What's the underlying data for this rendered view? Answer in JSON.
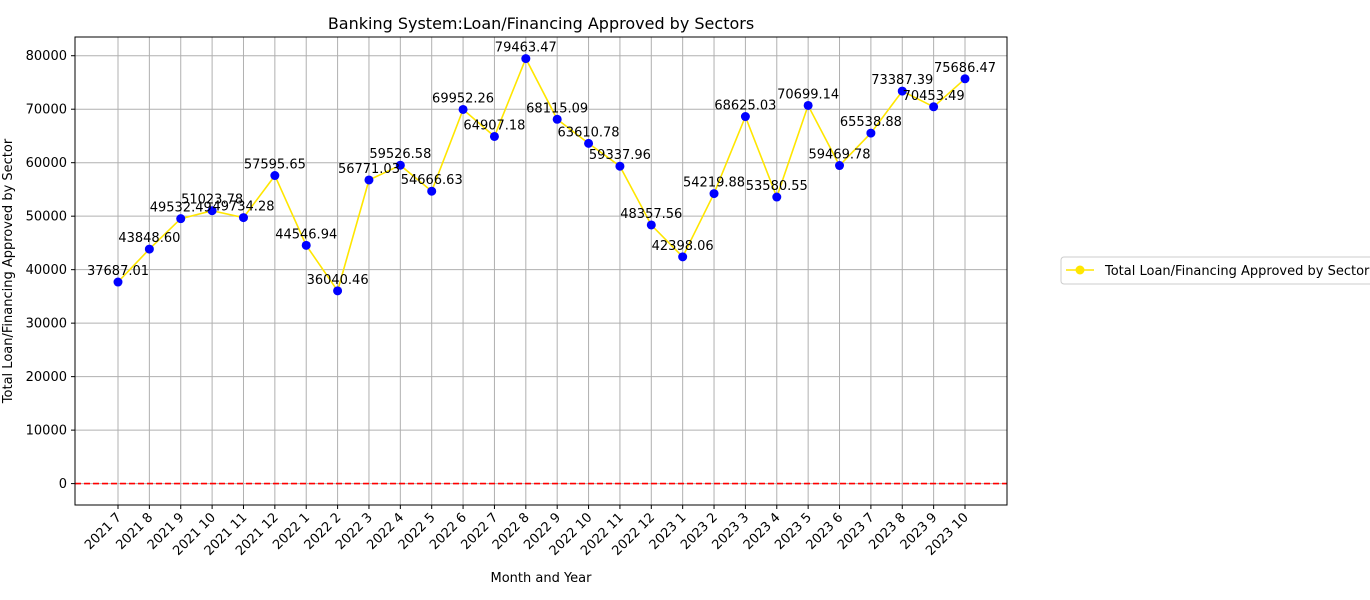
{
  "chart_data": {
    "type": "line",
    "title": "Banking System:Loan/Financing Approved by Sectors",
    "xlabel": "Month and Year",
    "ylabel": "Total Loan/Financing Approved by Sector",
    "categories": [
      "2021 7",
      "2021 8",
      "2021 9",
      "2021 10",
      "2021 11",
      "2021 12",
      "2022 1",
      "2022 2",
      "2022 3",
      "2022 4",
      "2022 5",
      "2022 6",
      "2022 7",
      "2022 8",
      "2022 9",
      "2022 10",
      "2022 11",
      "2022 12",
      "2023 1",
      "2023 2",
      "2023 3",
      "2023 4",
      "2023 5",
      "2023 6",
      "2023 7",
      "2023 8",
      "2023 9",
      "2023 10"
    ],
    "series": [
      {
        "name": "Total Loan/Financing Approved by Sector",
        "line_color": "#ffe600",
        "marker_color": "#0000ff",
        "values": [
          37687.01,
          43848.6,
          49532.49,
          51023.78,
          49734.28,
          57595.65,
          44546.94,
          36040.46,
          56771.03,
          59526.58,
          54666.63,
          69952.26,
          64907.18,
          79463.47,
          68115.09,
          63610.78,
          59337.96,
          48357.56,
          42398.06,
          54219.88,
          68625.03,
          53580.55,
          70699.14,
          59469.78,
          65538.88,
          73387.39,
          70453.49,
          75686.47
        ]
      }
    ],
    "data_labels": [
      "37687.01",
      "43848.60",
      "49532.49",
      "51023.78",
      "49734.28",
      "57595.65",
      "44546.94",
      "36040.46",
      "56771.03",
      "59526.58",
      "54666.63",
      "69952.26",
      "64907.18",
      "79463.47",
      "68115.09",
      "63610.78",
      "59337.96",
      "48357.56",
      "42398.06",
      "54219.88",
      "68625.03",
      "53580.55",
      "70699.14",
      "59469.78",
      "65538.88",
      "73387.39",
      "70453.49",
      "75686.47"
    ],
    "yticks": [
      0,
      10000,
      20000,
      30000,
      40000,
      50000,
      60000,
      70000,
      80000
    ],
    "ylim": [
      -4000,
      83500
    ],
    "reference_line": {
      "y": 0,
      "color": "#ff0000",
      "style": "dashed"
    },
    "grid": true,
    "legend_position": "right"
  }
}
